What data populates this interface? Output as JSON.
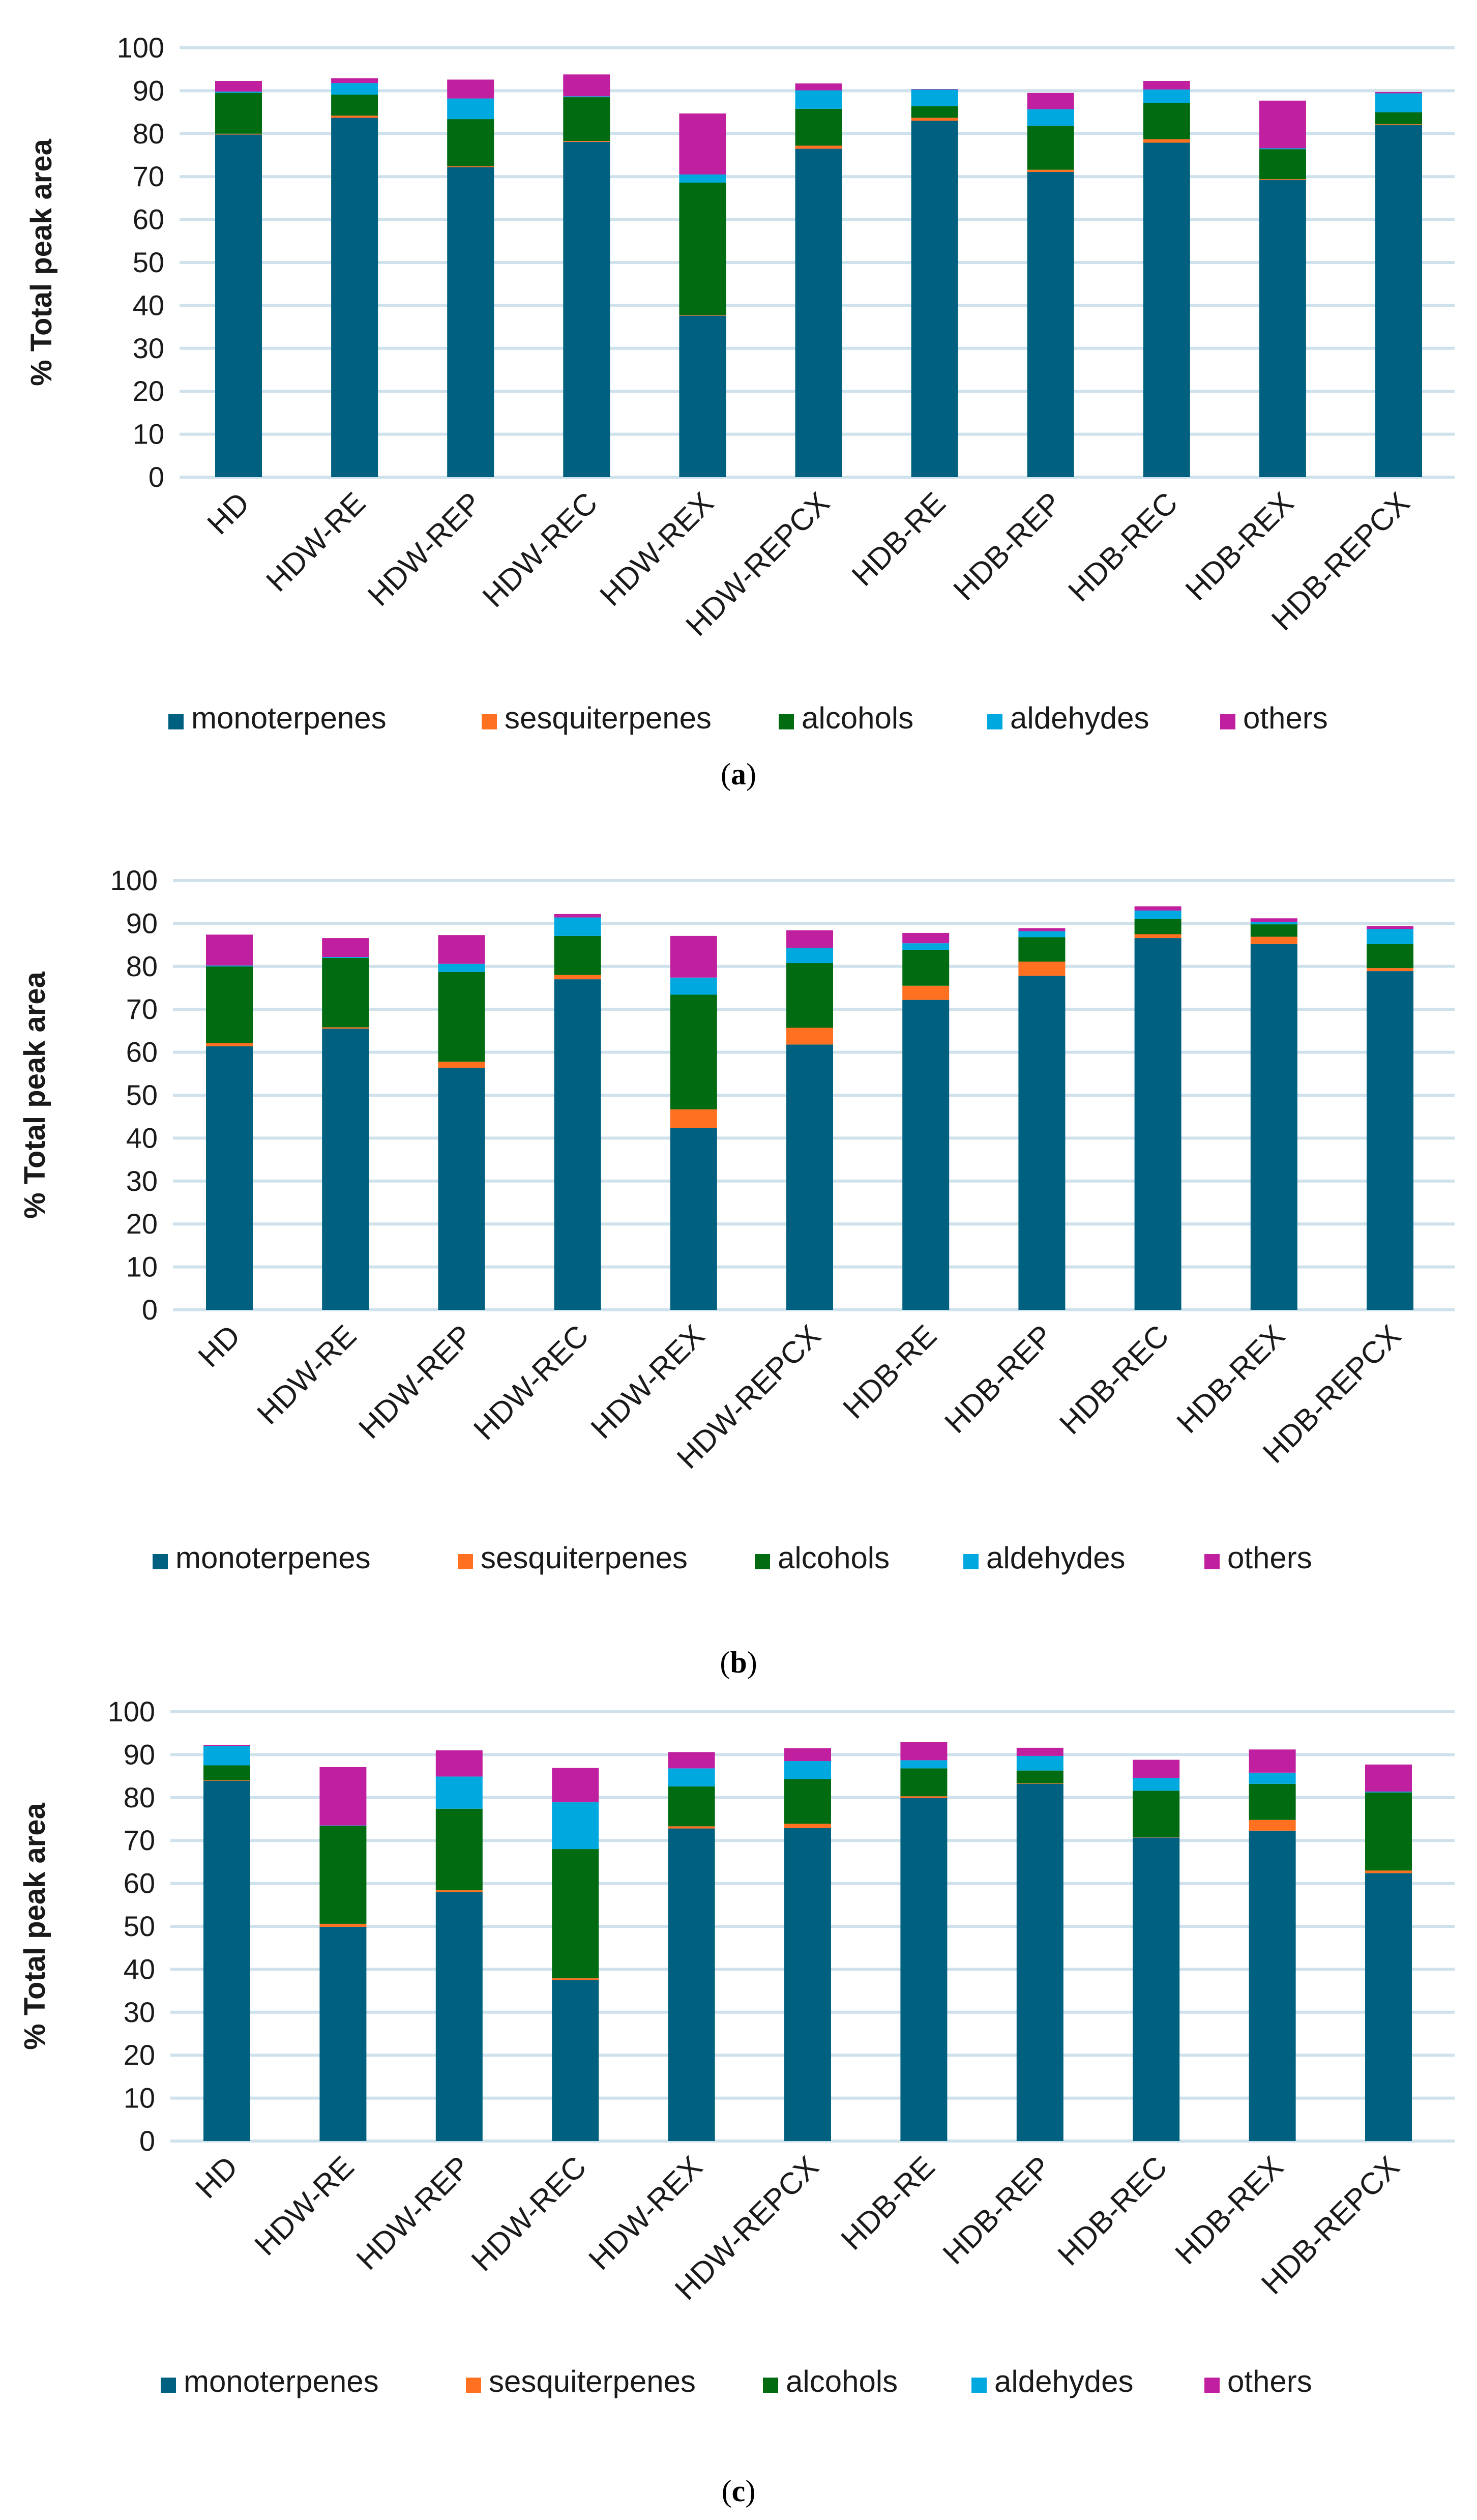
{
  "chart_data": [
    {
      "type": "bar",
      "stacked": true,
      "panel_label": "a",
      "categories": [
        "HD",
        "HDW-RE",
        "HDW-REP",
        "HDW-REC",
        "HDW-REX",
        "HDW-REPCX",
        "HDB-RE",
        "HDB-REP",
        "HDB-REC",
        "HDB-REX",
        "HDB-REPCX"
      ],
      "ylabel": "% Total peak area",
      "xlabel": "",
      "ylim": [
        0,
        100
      ],
      "yticks": [
        0,
        10,
        20,
        30,
        40,
        50,
        60,
        70,
        80,
        90,
        100
      ],
      "grid": true,
      "legend_position": "bottom",
      "series": [
        {
          "name": "monoterpenes",
          "color": "#00607f",
          "values": [
            79.8,
            83.7,
            72.2,
            78.1,
            37.6,
            76.5,
            83.0,
            71.1,
            77.9,
            69.2,
            82.0
          ]
        },
        {
          "name": "sesquiterpenes",
          "color": "#ff7020",
          "values": [
            0.2,
            0.5,
            0.2,
            0.2,
            0.1,
            0.7,
            0.7,
            0.5,
            0.8,
            0.2,
            0.2
          ]
        },
        {
          "name": "alcohols",
          "color": "#006b10",
          "values": [
            9.5,
            4.9,
            11.0,
            10.2,
            30.9,
            8.6,
            2.7,
            10.2,
            8.5,
            7.0,
            2.8
          ]
        },
        {
          "name": "aldehydes",
          "color": "#00a8e0",
          "values": [
            0.3,
            2.7,
            4.8,
            0.2,
            1.9,
            4.3,
            3.9,
            3.9,
            3.1,
            0.2,
            4.4
          ]
        },
        {
          "name": "others",
          "color": "#c020a0",
          "values": [
            2.5,
            1.1,
            4.4,
            5.1,
            14.2,
            1.6,
            0.1,
            3.8,
            2.0,
            11.1,
            0.3
          ]
        }
      ]
    },
    {
      "type": "bar",
      "stacked": true,
      "panel_label": "b",
      "categories": [
        "HD",
        "HDW-RE",
        "HDW-REP",
        "HDW-REC",
        "HDW-REX",
        "HDW-REPCX",
        "HDB-RE",
        "HDB-REP",
        "HDB-REC",
        "HDB-REX",
        "HDB-REPCX"
      ],
      "ylabel": "% Total peak area",
      "xlabel": "",
      "ylim": [
        0,
        100
      ],
      "yticks": [
        0,
        10,
        20,
        30,
        40,
        50,
        60,
        70,
        80,
        90,
        100
      ],
      "grid": true,
      "legend_position": "bottom",
      "series": [
        {
          "name": "monoterpenes",
          "color": "#00607f",
          "values": [
            61.4,
            65.5,
            56.4,
            77.0,
            42.4,
            61.8,
            72.2,
            77.8,
            86.6,
            85.2,
            78.9
          ]
        },
        {
          "name": "sesquiterpenes",
          "color": "#ff7020",
          "values": [
            0.7,
            0.3,
            1.4,
            1.0,
            4.3,
            3.9,
            3.3,
            3.3,
            0.9,
            1.7,
            0.7
          ]
        },
        {
          "name": "alcohols",
          "color": "#006b10",
          "values": [
            17.9,
            16.2,
            20.9,
            9.1,
            26.7,
            15.1,
            8.3,
            5.7,
            3.5,
            2.9,
            5.6
          ]
        },
        {
          "name": "aldehydes",
          "color": "#00a8e0",
          "values": [
            0.2,
            0.2,
            1.9,
            4.3,
            4.0,
            3.5,
            1.6,
            1.4,
            2.0,
            0.5,
            3.5
          ]
        },
        {
          "name": "others",
          "color": "#c020a0",
          "values": [
            7.2,
            4.4,
            6.7,
            0.8,
            9.7,
            4.1,
            2.4,
            0.7,
            1.0,
            0.9,
            0.7
          ]
        }
      ]
    },
    {
      "type": "bar",
      "stacked": true,
      "panel_label": "c",
      "categories": [
        "HD",
        "HDW-RE",
        "HDW-REP",
        "HDW-REC",
        "HDW-REX",
        "HDW-REPCX",
        "HDB-RE",
        "HDB-REP",
        "HDB-REC",
        "HDB-REX",
        "HDB-REPCX"
      ],
      "ylabel": "% Total peak area",
      "xlabel": "",
      "ylim": [
        0,
        100
      ],
      "yticks": [
        0,
        10,
        20,
        30,
        40,
        50,
        60,
        70,
        80,
        90,
        100
      ],
      "grid": true,
      "legend_position": "bottom",
      "series": [
        {
          "name": "monoterpenes",
          "color": "#00607f",
          "values": [
            83.9,
            49.9,
            58.0,
            37.5,
            72.8,
            72.9,
            79.9,
            83.2,
            70.7,
            72.3,
            62.4
          ]
        },
        {
          "name": "sesquiterpenes",
          "color": "#ff7020",
          "values": [
            0.1,
            0.7,
            0.4,
            0.4,
            0.5,
            1.0,
            0.4,
            0.1,
            0.1,
            2.5,
            0.6
          ]
        },
        {
          "name": "alcohols",
          "color": "#006b10",
          "values": [
            3.5,
            22.8,
            19.0,
            30.1,
            9.3,
            10.4,
            6.5,
            3.0,
            10.8,
            8.4,
            18.2
          ]
        },
        {
          "name": "aldehydes",
          "color": "#00a8e0",
          "values": [
            4.5,
            0.1,
            7.5,
            10.9,
            4.2,
            4.2,
            1.9,
            3.4,
            3.0,
            2.6,
            0.2
          ]
        },
        {
          "name": "others",
          "color": "#c020a0",
          "values": [
            0.3,
            13.6,
            6.1,
            8.0,
            3.8,
            3.0,
            4.2,
            1.9,
            4.2,
            5.4,
            6.3
          ]
        }
      ]
    }
  ]
}
